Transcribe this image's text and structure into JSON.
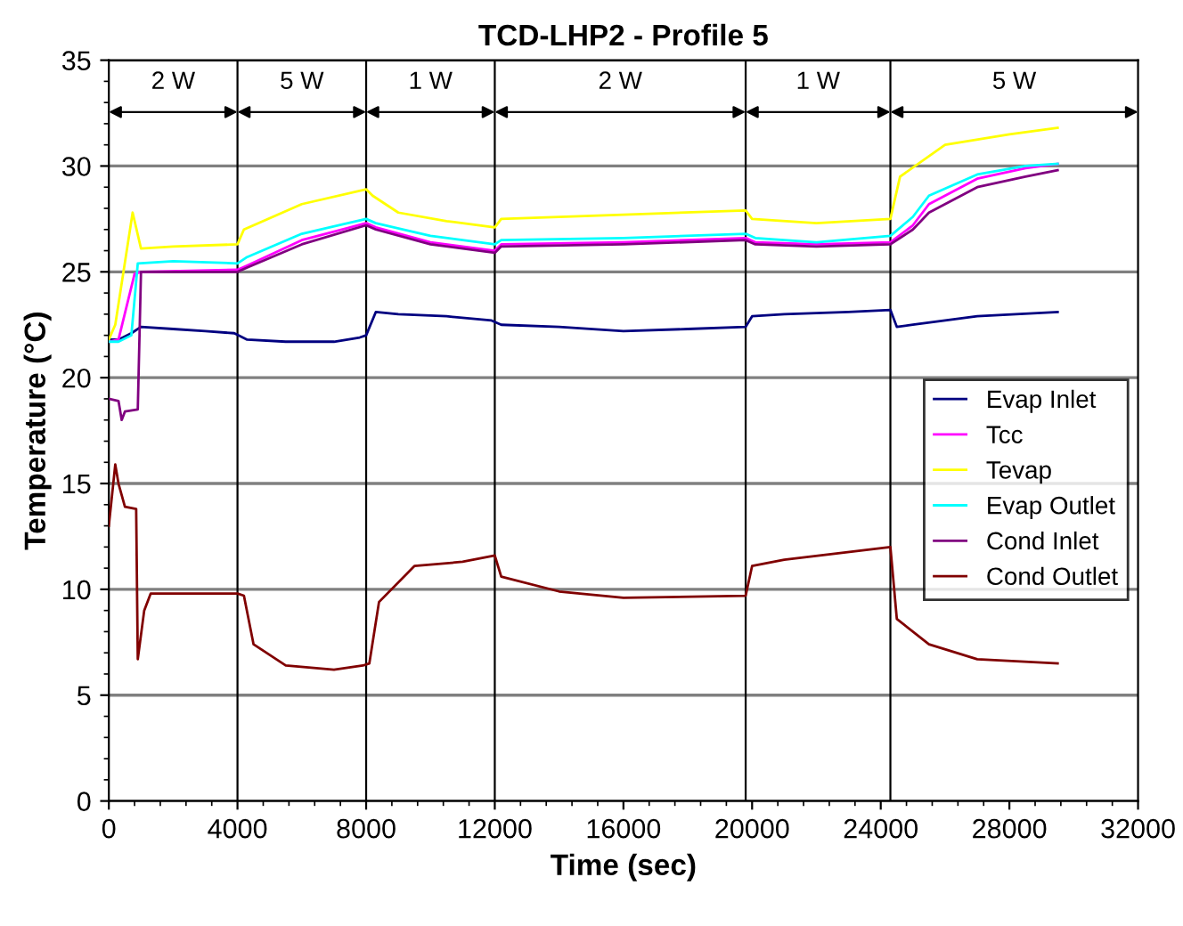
{
  "chart_data": {
    "type": "line",
    "title": "TCD-LHP2 - Profile 5",
    "xlabel": "Time (sec)",
    "ylabel": "Temperature (°C)",
    "xlim": [
      0,
      32000
    ],
    "ylim": [
      0,
      35
    ],
    "xticks": [
      0,
      4000,
      8000,
      12000,
      16000,
      20000,
      24000,
      28000,
      32000
    ],
    "yticks": [
      0,
      5,
      10,
      15,
      20,
      25,
      30,
      35
    ],
    "grid": "y",
    "legend": "right",
    "marker": "none",
    "line_style": "solid",
    "ref_lines": [
      {
        "axis": "x",
        "value": 4000,
        "color": "#000000"
      },
      {
        "axis": "x",
        "value": 8000,
        "color": "#000000"
      },
      {
        "axis": "x",
        "value": 12000,
        "color": "#000000"
      },
      {
        "axis": "x",
        "value": 19800,
        "color": "#000000"
      },
      {
        "axis": "x",
        "value": 24300,
        "color": "#000000"
      }
    ],
    "annotations": [
      "2 W",
      "5 W",
      "1 W",
      "2 W",
      "1 W",
      "5 W"
    ],
    "series": [
      {
        "name": "Evap Inlet",
        "color": "#000080",
        "x": [
          0,
          300,
          700,
          1000,
          2000,
          3000,
          3900,
          4300,
          5500,
          7000,
          7800,
          8000,
          8300,
          9000,
          10500,
          11900,
          12200,
          14000,
          16000,
          18000,
          19800,
          20000,
          21000,
          23000,
          24300,
          24500,
          25000,
          27000,
          29500
        ],
        "values": [
          21.8,
          21.8,
          22.1,
          22.4,
          22.3,
          22.2,
          22.1,
          21.8,
          21.7,
          21.7,
          21.9,
          22.0,
          23.1,
          23.0,
          22.9,
          22.7,
          22.5,
          22.4,
          22.2,
          22.3,
          22.4,
          22.9,
          23.0,
          23.1,
          23.2,
          22.4,
          22.5,
          22.9,
          23.1
        ]
      },
      {
        "name": "Tcc",
        "color": "#ff00ff",
        "x": [
          0,
          300,
          800,
          1000,
          4000,
          4300,
          6000,
          8000,
          8300,
          10000,
          12000,
          12200,
          16000,
          19800,
          20100,
          22000,
          24300,
          25000,
          25500,
          27000,
          28500,
          29500
        ],
        "values": [
          21.7,
          21.8,
          24.9,
          25.0,
          25.1,
          25.3,
          26.5,
          27.3,
          27.1,
          26.4,
          26.0,
          26.3,
          26.4,
          26.6,
          26.4,
          26.3,
          26.4,
          27.2,
          28.2,
          29.4,
          29.9,
          30.1
        ]
      },
      {
        "name": "Tevap",
        "color": "#ffff00",
        "x": [
          0,
          200,
          740,
          1000,
          2000,
          4000,
          4200,
          6000,
          8000,
          8200,
          9000,
          10500,
          12000,
          12200,
          16000,
          19800,
          20000,
          22000,
          24300,
          24600,
          26000,
          28000,
          29500
        ],
        "values": [
          21.8,
          22.5,
          27.8,
          26.1,
          26.2,
          26.3,
          27.0,
          28.2,
          28.9,
          28.6,
          27.8,
          27.4,
          27.1,
          27.5,
          27.7,
          27.9,
          27.5,
          27.3,
          27.5,
          29.5,
          31.0,
          31.5,
          31.8
        ]
      },
      {
        "name": "Evap Outlet",
        "color": "#00ffff",
        "x": [
          0,
          300,
          700,
          900,
          2000,
          4000,
          4300,
          6000,
          8000,
          8300,
          10000,
          12000,
          12200,
          16000,
          19800,
          20100,
          22000,
          24300,
          25000,
          25500,
          27000,
          28500,
          29500
        ],
        "values": [
          21.7,
          21.7,
          22.0,
          25.4,
          25.5,
          25.4,
          25.7,
          26.8,
          27.5,
          27.3,
          26.7,
          26.3,
          26.5,
          26.6,
          26.8,
          26.6,
          26.4,
          26.7,
          27.6,
          28.6,
          29.6,
          30.0,
          30.1
        ]
      },
      {
        "name": "Cond Inlet",
        "color": "#800080",
        "x": [
          0,
          300,
          400,
          500,
          900,
          1000,
          4000,
          4300,
          6000,
          8000,
          8300,
          10000,
          12000,
          12200,
          16000,
          19800,
          20100,
          22000,
          24300,
          25000,
          25500,
          27000,
          28500,
          29500
        ],
        "values": [
          19.0,
          18.9,
          18.0,
          18.4,
          18.5,
          25.0,
          25.0,
          25.2,
          26.3,
          27.2,
          27.0,
          26.3,
          25.9,
          26.2,
          26.3,
          26.5,
          26.3,
          26.2,
          26.3,
          27.0,
          27.8,
          29.0,
          29.5,
          29.8
        ]
      },
      {
        "name": "Cond Outlet",
        "color": "#800000",
        "x": [
          0,
          200,
          300,
          500,
          850,
          900,
          1100,
          1300,
          4000,
          4200,
          4500,
          5500,
          7000,
          7900,
          8100,
          8400,
          9500,
          11000,
          12000,
          12200,
          14000,
          16000,
          19800,
          20000,
          21000,
          24300,
          24500,
          25500,
          27000,
          29500
        ],
        "values": [
          13.0,
          15.9,
          15.0,
          13.9,
          13.8,
          6.7,
          9.0,
          9.8,
          9.8,
          9.7,
          7.4,
          6.4,
          6.2,
          6.4,
          6.5,
          9.4,
          11.1,
          11.3,
          11.6,
          10.6,
          9.9,
          9.6,
          9.7,
          11.1,
          11.4,
          12.0,
          8.6,
          7.4,
          6.7,
          6.5
        ]
      }
    ]
  }
}
